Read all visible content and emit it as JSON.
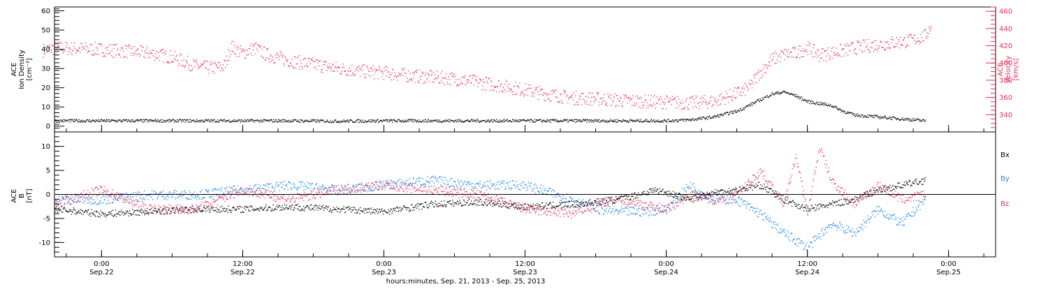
{
  "chart_data": [
    {
      "type": "scatter",
      "ylabel_lines": [
        "ACE",
        "Ion Density",
        "[cm⁻³]"
      ],
      "y2label_lines": [
        "ACE",
        "Velocity",
        "[km/s]"
      ],
      "ylim": [
        -3,
        62
      ],
      "y2lim": [
        320,
        465
      ],
      "yticks": [
        "0",
        "10",
        "20",
        "30",
        "40",
        "50",
        "60"
      ],
      "y2ticks": [
        "340",
        "360",
        "380",
        "400",
        "420",
        "440",
        "460"
      ],
      "colors": {
        "density": "#000000",
        "velocity": "#e8305a"
      },
      "density_points": [
        [
          -4,
          3
        ],
        [
          0,
          3
        ],
        [
          4,
          3
        ],
        [
          8,
          3
        ],
        [
          12,
          3
        ],
        [
          16,
          3
        ],
        [
          20,
          2.8
        ],
        [
          24,
          3
        ],
        [
          28,
          3
        ],
        [
          32,
          3
        ],
        [
          36,
          3
        ],
        [
          40,
          3
        ],
        [
          44,
          3
        ],
        [
          48,
          3
        ],
        [
          50,
          3.5
        ],
        [
          52,
          5
        ],
        [
          54,
          8
        ],
        [
          56,
          14
        ],
        [
          57,
          17
        ],
        [
          58,
          18
        ],
        [
          59,
          16
        ],
        [
          60,
          13
        ],
        [
          61,
          12
        ],
        [
          62,
          11
        ],
        [
          63,
          8
        ],
        [
          64,
          6
        ],
        [
          66,
          5
        ],
        [
          68,
          4
        ],
        [
          70,
          3
        ]
      ],
      "velocity_points": [
        [
          -5,
          415
        ],
        [
          -4,
          418
        ],
        [
          -2,
          417
        ],
        [
          0,
          416
        ],
        [
          2,
          414
        ],
        [
          4,
          412
        ],
        [
          6,
          407
        ],
        [
          7,
          402
        ],
        [
          8,
          397
        ],
        [
          9,
          395
        ],
        [
          10,
          395
        ],
        [
          10.5,
          398
        ],
        [
          11,
          420
        ],
        [
          11.5,
          415
        ],
        [
          12,
          412
        ],
        [
          13,
          418
        ],
        [
          14,
          410
        ],
        [
          16,
          403
        ],
        [
          18,
          399
        ],
        [
          20,
          394
        ],
        [
          22,
          391
        ],
        [
          24,
          389
        ],
        [
          26,
          386
        ],
        [
          28,
          384
        ],
        [
          30,
          382
        ],
        [
          32,
          378
        ],
        [
          34,
          374
        ],
        [
          36,
          369
        ],
        [
          38,
          364
        ],
        [
          40,
          360
        ],
        [
          42,
          359
        ],
        [
          44,
          357
        ],
        [
          46,
          356
        ],
        [
          48,
          355
        ],
        [
          50,
          354
        ],
        [
          52,
          356
        ],
        [
          54,
          365
        ],
        [
          55,
          372
        ],
        [
          56,
          390
        ],
        [
          57,
          405
        ],
        [
          58,
          410
        ],
        [
          59,
          412
        ],
        [
          60,
          418
        ],
        [
          61,
          410
        ],
        [
          62,
          412
        ],
        [
          64,
          418
        ],
        [
          66,
          422
        ],
        [
          68,
          425
        ],
        [
          69,
          427
        ],
        [
          70,
          432
        ],
        [
          70.5,
          445
        ]
      ]
    },
    {
      "type": "scatter",
      "ylabel_lines": [
        "ACE",
        "B",
        "[nT]"
      ],
      "ylim": [
        -13,
        13
      ],
      "yticks": [
        "-10",
        "-5",
        "0",
        "5",
        "10"
      ],
      "legend": [
        "Bx",
        "By",
        "Bz"
      ],
      "colors": {
        "Bx": "#000000",
        "By": "#1a84e8",
        "Bz": "#e8305a"
      },
      "xticks": [
        "0:00",
        "12:00",
        "0:00",
        "12:00",
        "0:00",
        "12:00",
        "0:00"
      ],
      "xtick_dates": [
        "Sep.22",
        "Sep.22",
        "Sep.23",
        "Sep.23",
        "Sep.24",
        "Sep.24",
        "Sep.25"
      ],
      "xlim": [
        -4,
        76
      ],
      "xtitle": "hours:minutes, Sep. 21, 2013 - Sep. 25, 2013",
      "bx_points": [
        [
          -4,
          -3
        ],
        [
          0,
          -4
        ],
        [
          4,
          -3.5
        ],
        [
          8,
          -3
        ],
        [
          12,
          -3
        ],
        [
          16,
          -2.5
        ],
        [
          20,
          -3
        ],
        [
          24,
          -3.5
        ],
        [
          28,
          -2
        ],
        [
          32,
          -1.5
        ],
        [
          36,
          -2.5
        ],
        [
          40,
          -2
        ],
        [
          44,
          -1
        ],
        [
          47,
          1
        ],
        [
          48,
          0.5
        ],
        [
          50,
          -1
        ],
        [
          52,
          0.5
        ],
        [
          54,
          1
        ],
        [
          56,
          2
        ],
        [
          58,
          -1
        ],
        [
          60,
          -3
        ],
        [
          62,
          -2
        ],
        [
          64,
          -1
        ],
        [
          66,
          1
        ],
        [
          68,
          2
        ],
        [
          70,
          3
        ]
      ],
      "by_points": [
        [
          -4,
          -1
        ],
        [
          0,
          -1
        ],
        [
          4,
          0
        ],
        [
          8,
          0
        ],
        [
          12,
          1
        ],
        [
          16,
          2
        ],
        [
          20,
          1
        ],
        [
          24,
          2
        ],
        [
          28,
          3
        ],
        [
          32,
          2
        ],
        [
          36,
          2
        ],
        [
          40,
          -1
        ],
        [
          42,
          -3
        ],
        [
          44,
          -3.5
        ],
        [
          46,
          -3.5
        ],
        [
          48,
          -3
        ],
        [
          50,
          2
        ],
        [
          52,
          -1
        ],
        [
          54,
          -1
        ],
        [
          56,
          -4
        ],
        [
          58,
          -8
        ],
        [
          60,
          -11
        ],
        [
          62,
          -6
        ],
        [
          64,
          -8
        ],
        [
          66,
          -3
        ],
        [
          68,
          -6
        ],
        [
          70,
          -1
        ]
      ],
      "bz_points": [
        [
          -4,
          -2
        ],
        [
          0,
          1
        ],
        [
          4,
          -3
        ],
        [
          8,
          -3
        ],
        [
          12,
          1
        ],
        [
          16,
          -1
        ],
        [
          20,
          1
        ],
        [
          24,
          2
        ],
        [
          28,
          1
        ],
        [
          32,
          0
        ],
        [
          36,
          -3
        ],
        [
          40,
          -4
        ],
        [
          42,
          -2
        ],
        [
          44,
          -1
        ],
        [
          46,
          -2
        ],
        [
          48,
          -3
        ],
        [
          50,
          0
        ],
        [
          52,
          -1
        ],
        [
          54,
          0
        ],
        [
          56,
          5
        ],
        [
          58,
          -2
        ],
        [
          59,
          8
        ],
        [
          60,
          -4
        ],
        [
          61,
          10
        ],
        [
          62,
          3
        ],
        [
          64,
          -2
        ],
        [
          66,
          2
        ],
        [
          68,
          -1
        ],
        [
          70,
          0
        ]
      ]
    }
  ]
}
